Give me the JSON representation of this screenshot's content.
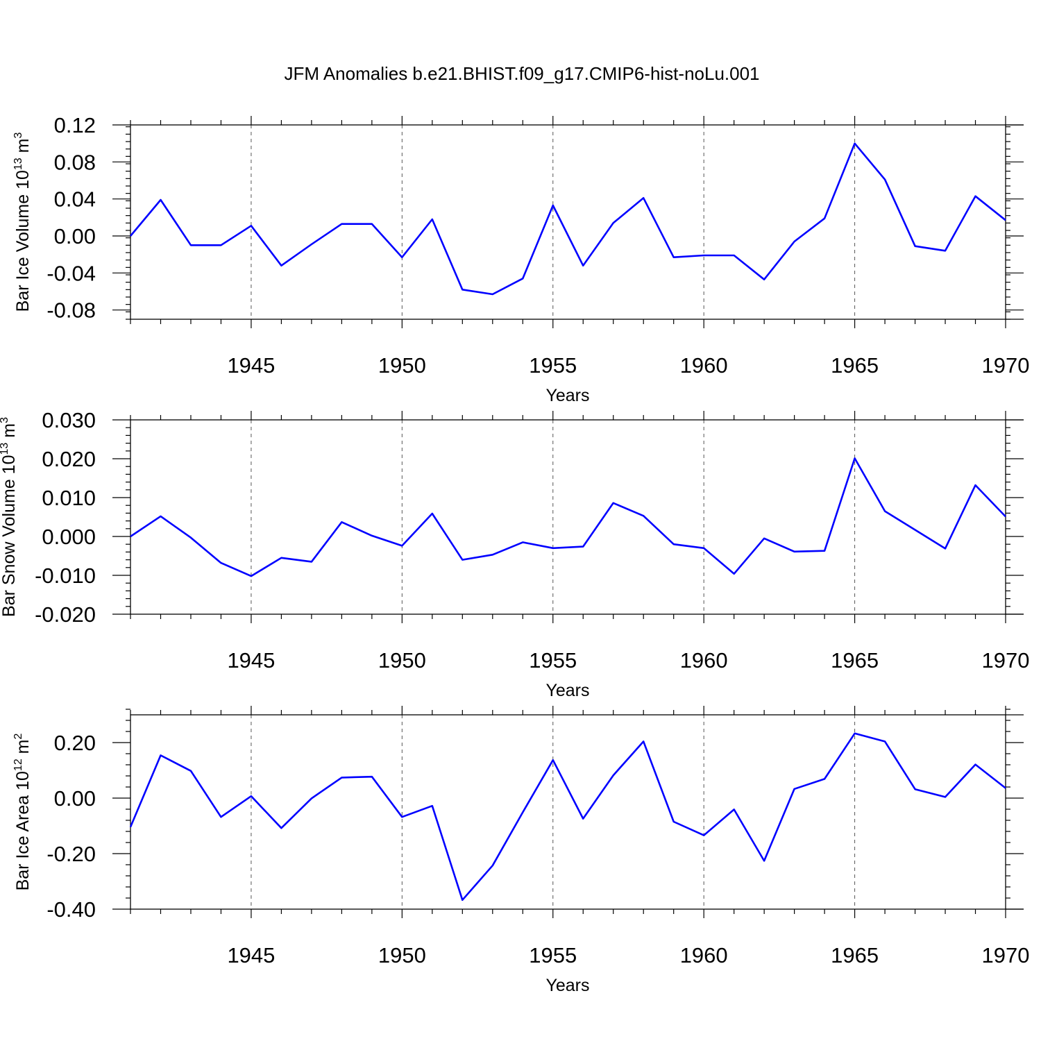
{
  "title": "JFM Anomalies b.e21.BHIST.f09_g17.CMIP6-hist-noLu.001",
  "line_color": "#0000ff",
  "chart_data": [
    {
      "type": "line",
      "ylabel_main": "Bar Ice Volume 10",
      "ylabel_sup": "13",
      "ylabel_unit": " m",
      "ylabel_unit_sup": "3",
      "xlabel": "Years",
      "xlim": [
        1941,
        1970
      ],
      "ylim": [
        -0.09,
        0.12
      ],
      "ytick_values": [
        -0.08,
        -0.04,
        0.0,
        0.04,
        0.08,
        0.12
      ],
      "ytick_labels": [
        "-0.08",
        "-0.04",
        "0.00",
        "0.04",
        "0.08",
        "0.12"
      ],
      "xtick_values": [
        1945,
        1950,
        1955,
        1960,
        1965,
        1970
      ],
      "xtick_labels": [
        "1945",
        "1950",
        "1955",
        "1960",
        "1965",
        "1970"
      ],
      "x": [
        1941,
        1942,
        1943,
        1944,
        1945,
        1946,
        1947,
        1948,
        1949,
        1950,
        1951,
        1952,
        1953,
        1954,
        1955,
        1956,
        1957,
        1958,
        1959,
        1960,
        1961,
        1962,
        1963,
        1964,
        1965,
        1966,
        1967,
        1968,
        1969,
        1970
      ],
      "values": [
        0.0,
        0.039,
        -0.01,
        -0.01,
        0.011,
        -0.032,
        -0.009,
        0.013,
        0.013,
        -0.023,
        0.018,
        -0.058,
        -0.063,
        -0.046,
        0.033,
        -0.032,
        0.014,
        0.041,
        -0.023,
        -0.021,
        -0.021,
        -0.047,
        -0.006,
        0.019,
        0.1,
        0.061,
        -0.011,
        -0.016,
        0.043,
        0.017
      ]
    },
    {
      "type": "line",
      "ylabel_main": "Bar Snow Volume 10",
      "ylabel_sup": "13",
      "ylabel_unit": " m",
      "ylabel_unit_sup": "3",
      "xlabel": "Years",
      "xlim": [
        1941,
        1970
      ],
      "ylim": [
        -0.02,
        0.03
      ],
      "ytick_values": [
        -0.02,
        -0.01,
        0.0,
        0.01,
        0.02,
        0.03
      ],
      "ytick_labels": [
        "-0.020",
        "-0.010",
        "0.000",
        "0.010",
        "0.020",
        "0.030"
      ],
      "xtick_values": [
        1945,
        1950,
        1955,
        1960,
        1965,
        1970
      ],
      "xtick_labels": [
        "1945",
        "1950",
        "1955",
        "1960",
        "1965",
        "1970"
      ],
      "x": [
        1941,
        1942,
        1943,
        1944,
        1945,
        1946,
        1947,
        1948,
        1949,
        1950,
        1951,
        1952,
        1953,
        1954,
        1955,
        1956,
        1957,
        1958,
        1959,
        1960,
        1961,
        1962,
        1963,
        1964,
        1965,
        1966,
        1967,
        1968,
        1969,
        1970
      ],
      "values": [
        0.0,
        0.0052,
        -0.0003,
        -0.0068,
        -0.0102,
        -0.0055,
        -0.0065,
        0.0037,
        0.0002,
        -0.0024,
        0.0059,
        -0.006,
        -0.0047,
        -0.0015,
        -0.003,
        -0.0026,
        0.0086,
        0.0053,
        -0.002,
        -0.003,
        -0.0096,
        -0.0005,
        -0.0039,
        -0.0037,
        0.0201,
        0.0065,
        0.0017,
        -0.0031,
        0.0132,
        0.0051
      ]
    },
    {
      "type": "line",
      "ylabel_main": "Bar Ice Area 10",
      "ylabel_sup": "12",
      "ylabel_unit": " m",
      "ylabel_unit_sup": "2",
      "xlabel": "Years",
      "xlim": [
        1941,
        1970
      ],
      "ylim": [
        -0.4,
        0.3
      ],
      "ytick_values": [
        -0.4,
        -0.2,
        0.0,
        0.2
      ],
      "ytick_labels": [
        "-0.40",
        "-0.20",
        "0.00",
        "0.20"
      ],
      "xtick_values": [
        1945,
        1950,
        1955,
        1960,
        1965,
        1970
      ],
      "xtick_labels": [
        "1945",
        "1950",
        "1955",
        "1960",
        "1965",
        "1970"
      ],
      "x": [
        1941,
        1942,
        1943,
        1944,
        1945,
        1946,
        1947,
        1948,
        1949,
        1950,
        1951,
        1952,
        1953,
        1954,
        1955,
        1956,
        1957,
        1958,
        1959,
        1960,
        1961,
        1962,
        1963,
        1964,
        1965,
        1966,
        1967,
        1968,
        1969,
        1970
      ],
      "values": [
        -0.104,
        0.154,
        0.098,
        -0.068,
        0.007,
        -0.108,
        -0.001,
        0.074,
        0.077,
        -0.068,
        -0.028,
        -0.367,
        -0.243,
        -0.051,
        0.137,
        -0.074,
        0.082,
        0.204,
        -0.085,
        -0.134,
        -0.041,
        -0.226,
        0.033,
        0.069,
        0.233,
        0.204,
        0.032,
        0.004,
        0.121,
        0.036
      ]
    }
  ]
}
